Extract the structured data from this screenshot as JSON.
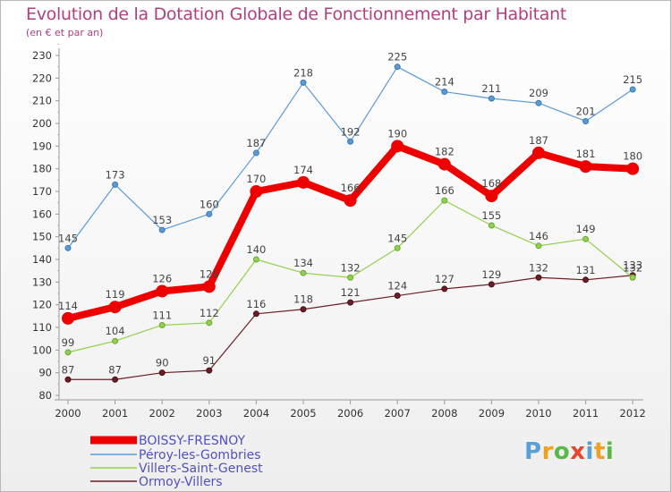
{
  "title": "Evolution de la Dotation Globale de Fonctionnement par Habitant",
  "subtitle": "(en € et par an)",
  "logo": {
    "letters": [
      "P",
      "r",
      "o",
      "x",
      "i",
      "t",
      "i"
    ],
    "colors": [
      "#5aa0d8",
      "#f0a020",
      "#5ab848",
      "#e04830",
      "#5aa0d8",
      "#f0a020",
      "#5ab848"
    ]
  },
  "chart_data": {
    "type": "line",
    "title": "Evolution de la Dotation Globale de Fonctionnement par Habitant",
    "subtitle": "(en € et par an)",
    "x": [
      "2000",
      "2001",
      "2002",
      "2003",
      "2004",
      "2005",
      "2006",
      "2007",
      "2008",
      "2009",
      "2010",
      "2011",
      "2012"
    ],
    "ylim": [
      80,
      230
    ],
    "yticks": [
      80,
      90,
      100,
      110,
      120,
      130,
      140,
      150,
      160,
      170,
      180,
      190,
      200,
      210,
      220,
      230
    ],
    "grid": false,
    "legend_position": "bottom-left",
    "series": [
      {
        "name": "BOISSY-FRESNOY",
        "color": "#ee0000",
        "values": [
          114,
          119,
          126,
          128,
          170,
          174,
          166,
          190,
          182,
          168,
          187,
          181,
          180
        ]
      },
      {
        "name": "Péroy-les-Gombries",
        "color": "#5b9bd5",
        "values": [
          145,
          173,
          153,
          160,
          187,
          218,
          192,
          225,
          214,
          211,
          209,
          201,
          215
        ]
      },
      {
        "name": "Villers-Saint-Genest",
        "color": "#92d050",
        "values": [
          99,
          104,
          111,
          112,
          140,
          134,
          132,
          145,
          166,
          155,
          146,
          149,
          132
        ]
      },
      {
        "name": "Ormoy-Villers",
        "color": "#6b1f24",
        "values": [
          87,
          87,
          90,
          91,
          116,
          118,
          121,
          124,
          127,
          129,
          132,
          131,
          133
        ]
      }
    ]
  }
}
